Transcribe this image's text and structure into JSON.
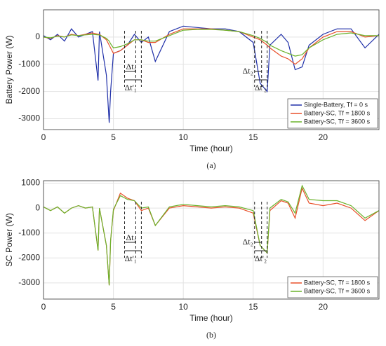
{
  "chart_data": [
    {
      "type": "line",
      "caption": "(a)",
      "ylabel": "Battery Power (W)",
      "xlabel": "Time (hour)",
      "xlim": [
        0,
        24
      ],
      "xticks": [
        0,
        5,
        10,
        15,
        20
      ],
      "ylim": [
        -3400,
        1000
      ],
      "yticks": [
        -3000,
        -2000,
        -1000,
        0
      ],
      "grid": true,
      "legend": "lower right",
      "annotations": [
        "Δt₁",
        "Δt'₁",
        "Δt₂",
        "Δt'₂"
      ],
      "x": [
        0,
        0.5,
        1,
        1.5,
        2,
        2.5,
        3,
        3.5,
        3.9,
        4.0,
        4.5,
        4.7,
        4.8,
        5,
        5.5,
        6,
        6.5,
        7,
        7.5,
        8,
        9,
        10,
        11,
        12,
        13,
        14,
        15,
        15.5,
        16,
        16.2,
        17,
        17.5,
        18,
        18.5,
        19,
        20,
        21,
        22,
        23,
        24
      ],
      "series": [
        {
          "name": "Single-Battery, Tf = 0 s",
          "color": "#1f2fa8",
          "values": [
            50,
            -100,
            100,
            -150,
            300,
            0,
            100,
            200,
            -1600,
            200,
            -1400,
            -3150,
            -2000,
            -600,
            -500,
            -300,
            100,
            -200,
            0,
            -900,
            200,
            400,
            350,
            300,
            300,
            200,
            -200,
            -1700,
            -2000,
            -300,
            100,
            -200,
            -1200,
            -1100,
            -300,
            100,
            300,
            300,
            -400,
            100
          ]
        },
        {
          "name": "Battery-SC, Tf = 1800 s",
          "color": "#e8502a",
          "values": [
            0,
            -50,
            50,
            0,
            100,
            50,
            100,
            150,
            100,
            100,
            -100,
            -300,
            -400,
            -600,
            -500,
            -300,
            -100,
            -100,
            -200,
            -200,
            100,
            300,
            300,
            300,
            250,
            200,
            0,
            -100,
            -300,
            -400,
            -700,
            -800,
            -1000,
            -800,
            -400,
            0,
            200,
            200,
            0,
            50
          ]
        },
        {
          "name": "Battery-SC, Tf = 3600 s",
          "color": "#6ab22b",
          "values": [
            0,
            -30,
            30,
            0,
            80,
            50,
            80,
            100,
            80,
            80,
            -50,
            -150,
            -250,
            -400,
            -350,
            -250,
            -100,
            -100,
            -150,
            -150,
            50,
            250,
            280,
            280,
            250,
            200,
            50,
            -50,
            -200,
            -300,
            -500,
            -600,
            -700,
            -650,
            -400,
            -100,
            100,
            150,
            50,
            50
          ]
        }
      ]
    },
    {
      "type": "line",
      "caption": "(b)",
      "ylabel": "SC Power (W)",
      "xlabel": "Time (hour)",
      "xlim": [
        0,
        24
      ],
      "xticks": [
        0,
        5,
        10,
        15,
        20
      ],
      "ylim": [
        -3650,
        1100
      ],
      "yticks": [
        -3000,
        -2000,
        -1000,
        0,
        1000
      ],
      "grid": true,
      "legend": "lower right",
      "annotations": [
        "Δt₁",
        "Δt'₁",
        "Δt₂",
        "Δt'₂"
      ],
      "x": [
        0,
        0.5,
        1,
        1.5,
        2,
        2.5,
        3,
        3.5,
        3.9,
        4.0,
        4.5,
        4.7,
        4.8,
        5,
        5.5,
        6,
        6.5,
        7,
        7.5,
        8,
        9,
        10,
        11,
        12,
        13,
        14,
        15,
        15.5,
        16,
        16.2,
        17,
        17.5,
        18,
        18.5,
        19,
        20,
        21,
        22,
        23,
        24
      ],
      "series": [
        {
          "name": "Battery-SC, Tf = 1800 s",
          "color": "#e8502a",
          "values": [
            50,
            -100,
            50,
            -200,
            0,
            100,
            0,
            50,
            -1700,
            0,
            -1500,
            -3100,
            -1300,
            -100,
            600,
            400,
            300,
            -100,
            0,
            -700,
            0,
            100,
            50,
            0,
            50,
            0,
            -200,
            -1500,
            -1800,
            -100,
            300,
            200,
            -400,
            800,
            200,
            100,
            200,
            0,
            -500,
            -100
          ]
        },
        {
          "name": "Battery-SC, Tf = 3600 s",
          "color": "#6ab22b",
          "values": [
            50,
            -100,
            50,
            -200,
            0,
            100,
            0,
            50,
            -1700,
            0,
            -1500,
            -3100,
            -1300,
            -50,
            500,
            350,
            300,
            0,
            50,
            -700,
            50,
            150,
            100,
            50,
            100,
            50,
            -100,
            -1500,
            -1800,
            0,
            350,
            250,
            -200,
            900,
            350,
            300,
            300,
            100,
            -400,
            -100
          ]
        }
      ]
    }
  ]
}
